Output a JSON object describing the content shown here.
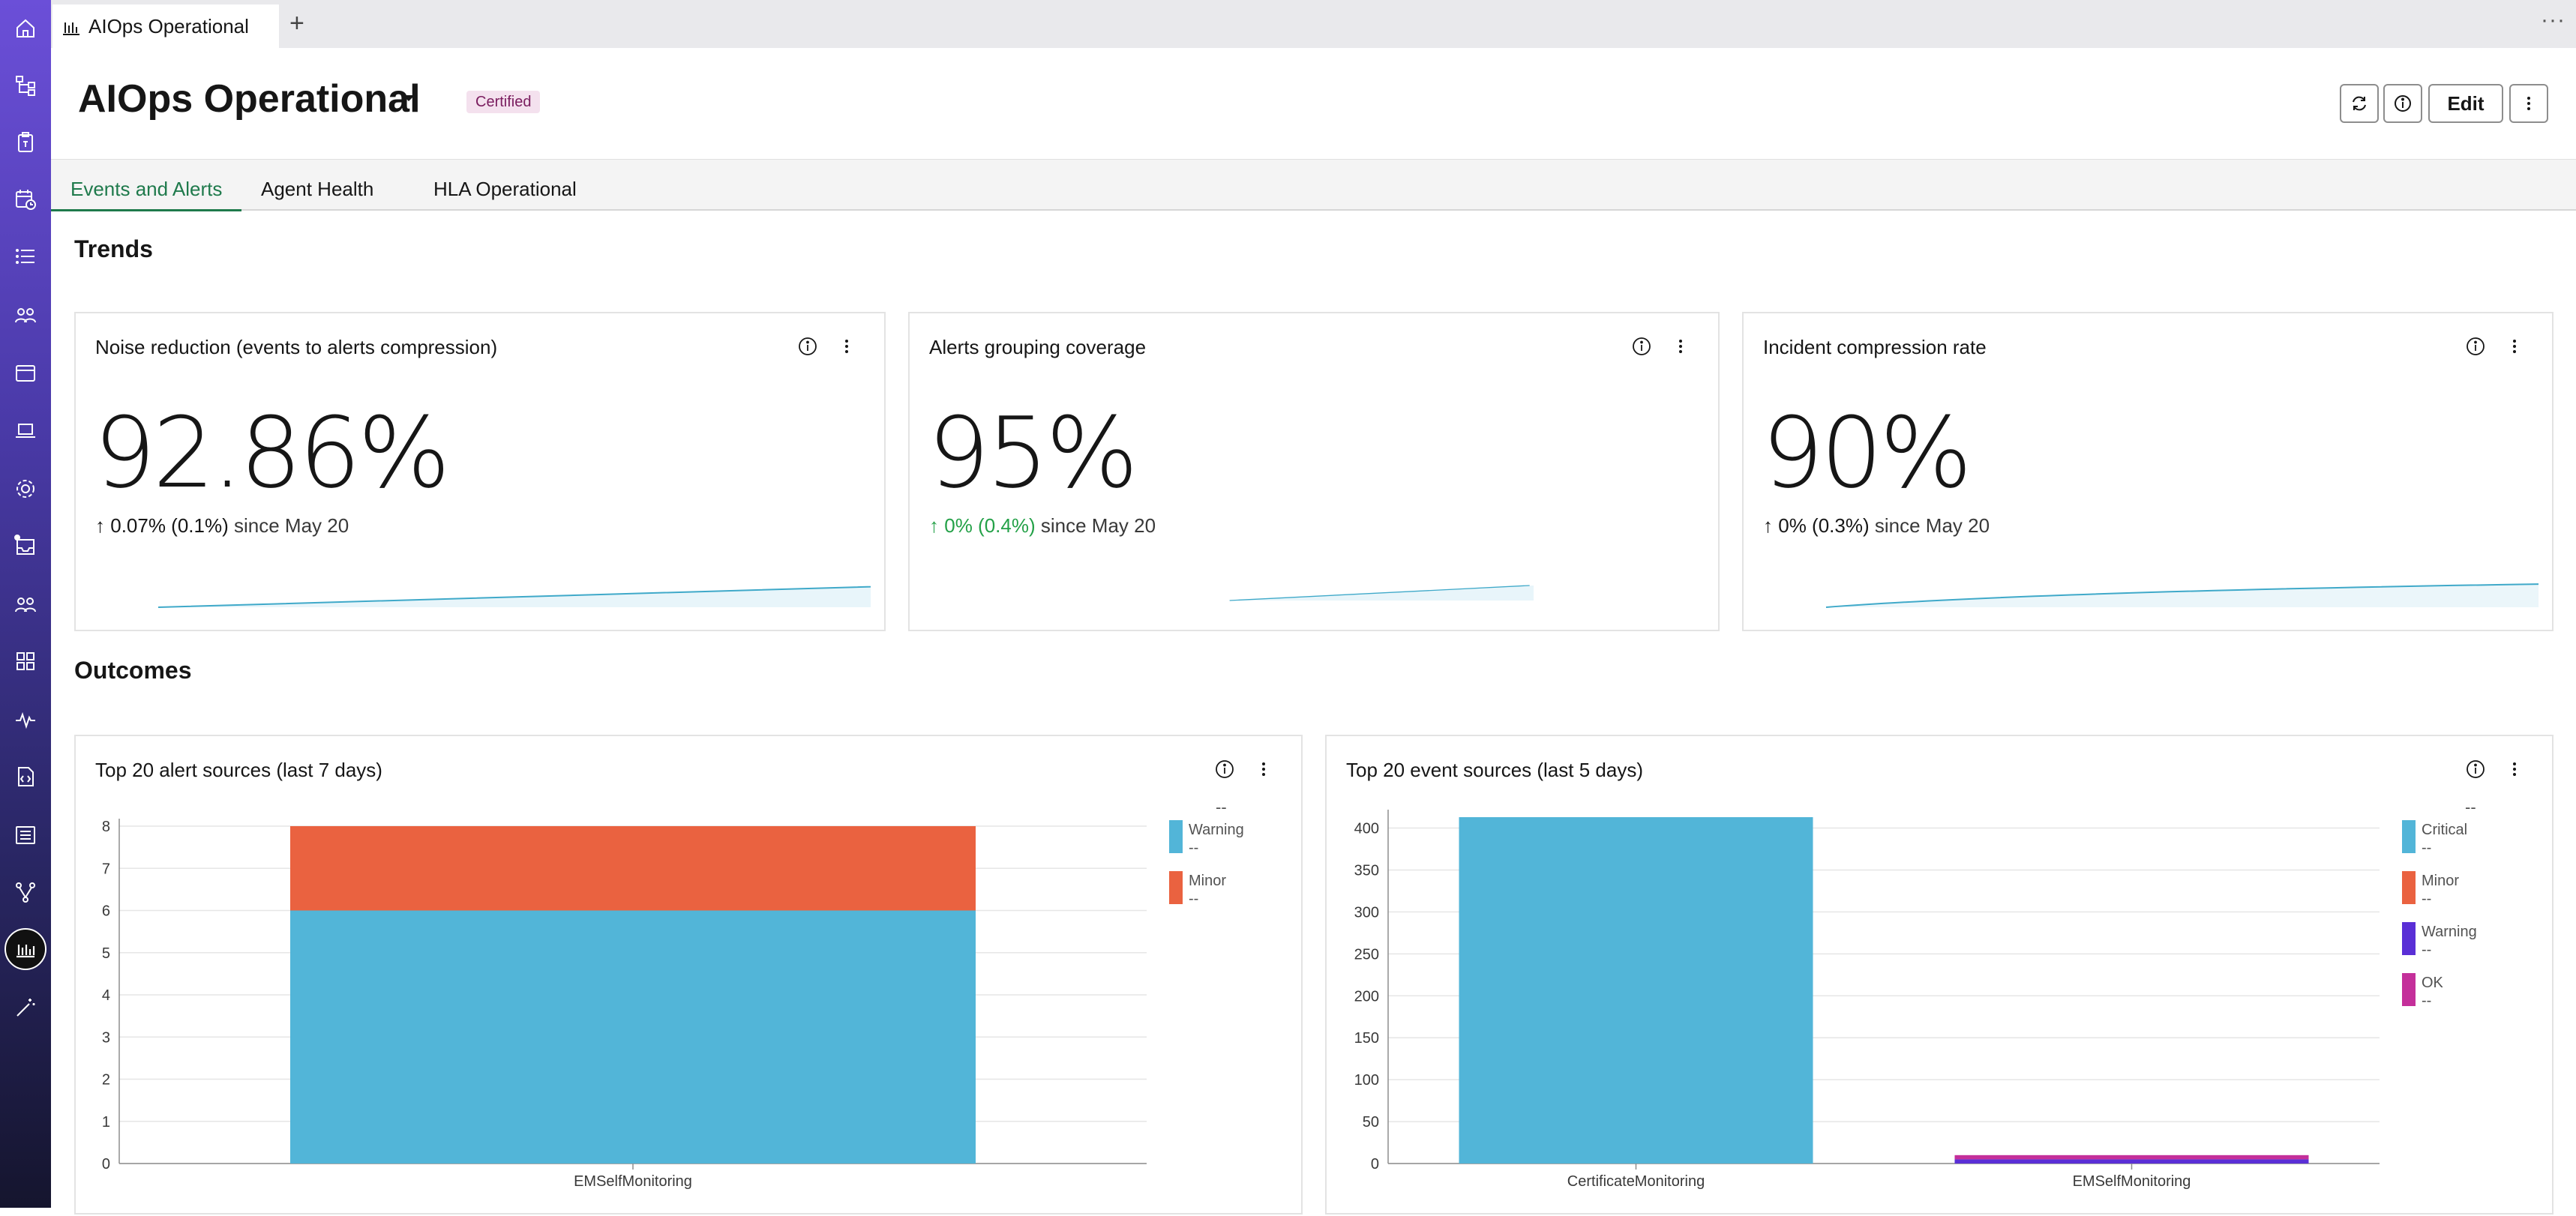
{
  "browser_tab": {
    "title": "AIOps Operational"
  },
  "header": {
    "title": "AIOps Operational",
    "badge": "Certified",
    "edit_label": "Edit"
  },
  "tabs": [
    {
      "label": "Events and Alerts",
      "active": true
    },
    {
      "label": "Agent Health",
      "active": false
    },
    {
      "label": "HLA Operational",
      "active": false
    }
  ],
  "sections": {
    "trends": "Trends",
    "outcomes": "Outcomes"
  },
  "kpis": [
    {
      "title": "Noise reduction (events to alerts compression)",
      "value": "92.86%",
      "delta": "0.07% (0.1%)",
      "since": "since May 20",
      "delta_color": "#161616"
    },
    {
      "title": "Alerts grouping coverage",
      "value": "95%",
      "delta": "0% (0.4%)",
      "since": "since May 20",
      "delta_color": "#24a148"
    },
    {
      "title": "Incident compression rate",
      "value": "90%",
      "delta": "0% (0.3%)",
      "since": "since May 20",
      "delta_color": "#161616"
    }
  ],
  "colors": {
    "accent_green": "#1f7a4c",
    "critical": "#52b5d8",
    "minor": "#ea6240",
    "warning_purple": "#5a2fd6",
    "ok": "#c42f9a",
    "sparkline": "#3fa9c9"
  },
  "chart_data": [
    {
      "type": "bar",
      "stacked": true,
      "title": "Top 20 alert sources (last 7 days)",
      "categories": [
        "EMSelfMonitoring"
      ],
      "series": [
        {
          "name": "Warning",
          "values": [
            6
          ],
          "color": "#52b5d8"
        },
        {
          "name": "Minor",
          "values": [
            2
          ],
          "color": "#ea6240"
        }
      ],
      "ylim": [
        0,
        8
      ],
      "yticks": [
        0,
        1,
        2,
        3,
        4,
        5,
        6,
        7,
        8
      ],
      "grid": true,
      "legend": {
        "position": "right",
        "total": "--",
        "values": [
          "--",
          "--"
        ]
      }
    },
    {
      "type": "bar",
      "stacked": true,
      "title": "Top 20 event sources (last 5 days)",
      "categories": [
        "CertificateMonitoring",
        "EMSelfMonitoring"
      ],
      "series": [
        {
          "name": "Critical",
          "values": [
            413,
            0
          ],
          "color": "#52b5d8"
        },
        {
          "name": "Minor",
          "values": [
            0,
            0
          ],
          "color": "#ea6240"
        },
        {
          "name": "Warning",
          "values": [
            0,
            5
          ],
          "color": "#5a2fd6"
        },
        {
          "name": "OK",
          "values": [
            0,
            5
          ],
          "color": "#c42f9a"
        }
      ],
      "ylim": [
        0,
        413
      ],
      "yticks": [
        0,
        50,
        100,
        150,
        200,
        250,
        300,
        350,
        400
      ],
      "grid": true,
      "legend": {
        "position": "right",
        "total": "--",
        "values": [
          "--",
          "--",
          "--",
          "--"
        ]
      }
    }
  ]
}
